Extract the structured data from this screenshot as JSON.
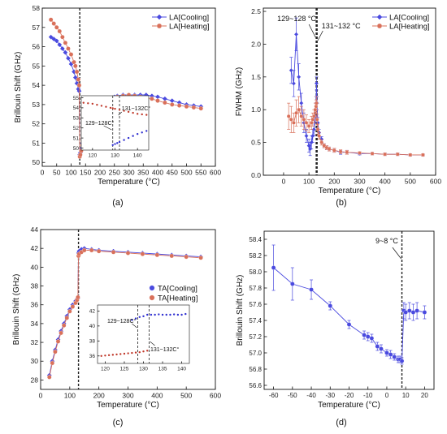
{
  "colors": {
    "cooling": "#4a4adf",
    "heating": "#d9705a",
    "inset_cooling": "#2f2fd0",
    "inset_heating": "#c0392b",
    "axis": "#111111",
    "dashed_line": "#222222"
  },
  "chart_data": [
    {
      "id": "a",
      "type": "line",
      "panel_label": "(a)",
      "xlabel": "Temperature (°C)",
      "ylabel": "Brillouin Shift (GHz)",
      "xlim": [
        0,
        600
      ],
      "ylim": [
        49.8,
        58
      ],
      "xticks": [
        0,
        50,
        100,
        150,
        200,
        250,
        300,
        350,
        400,
        450,
        500,
        550,
        600
      ],
      "yticks": [
        50,
        51,
        52,
        53,
        54,
        55,
        56,
        57,
        58
      ],
      "grid": false,
      "legend": "top-right",
      "vline": 130,
      "series": [
        {
          "name": "LA[Cooling]",
          "color_key": "cooling",
          "x": [
            30,
            40,
            50,
            60,
            70,
            80,
            90,
            100,
            110,
            115,
            120,
            125,
            128,
            130,
            132,
            135,
            140,
            145,
            150,
            160,
            170,
            180,
            190,
            200,
            210,
            220,
            230,
            240,
            250,
            260,
            280,
            300,
            320,
            340,
            360,
            380,
            400,
            425,
            450,
            475,
            500,
            525,
            550
          ],
          "y": [
            56.5,
            56.4,
            56.3,
            56.1,
            55.9,
            55.7,
            55.4,
            55.1,
            54.7,
            54.4,
            54.1,
            53.8,
            53.7,
            50.4,
            50.5,
            50.7,
            51.0,
            51.3,
            51.6,
            52.0,
            52.3,
            52.6,
            52.8,
            53.0,
            53.1,
            53.2,
            53.3,
            53.35,
            53.4,
            53.45,
            53.5,
            53.5,
            53.5,
            53.5,
            53.5,
            53.45,
            53.4,
            53.3,
            53.2,
            53.1,
            53.0,
            52.95,
            52.9
          ]
        },
        {
          "name": "LA[Heating]",
          "color_key": "heating",
          "x": [
            30,
            40,
            50,
            60,
            70,
            80,
            90,
            100,
            110,
            115,
            120,
            125,
            128,
            130,
            132,
            135,
            140,
            145,
            150,
            160,
            170,
            180,
            190,
            200,
            210,
            220,
            230,
            240,
            250,
            260,
            280,
            300,
            320,
            340,
            360,
            380,
            400,
            425,
            450,
            475,
            500,
            525,
            550
          ],
          "y": [
            57.4,
            57.2,
            57.0,
            56.8,
            56.5,
            56.2,
            55.9,
            55.6,
            55.2,
            55.0,
            54.7,
            54.3,
            54.0,
            50.3,
            50.4,
            50.6,
            50.9,
            51.2,
            51.5,
            51.9,
            52.2,
            52.5,
            52.7,
            52.9,
            53.0,
            53.1,
            53.2,
            53.3,
            53.35,
            53.4,
            53.45,
            53.5,
            53.45,
            53.4,
            53.35,
            53.3,
            53.2,
            53.1,
            53.0,
            52.95,
            52.9,
            52.85,
            52.8
          ]
        }
      ],
      "inset": {
        "xlim": [
          115,
          145
        ],
        "ylim": [
          49.8,
          55.2
        ],
        "xticks": [
          120,
          130,
          140
        ],
        "yticks": [
          50,
          51,
          52,
          53,
          54,
          55
        ],
        "vlines": [
          129,
          132
        ],
        "annotations": [
          "129~128C°",
          "131~132C°"
        ],
        "series": [
          {
            "color_key": "inset_heating",
            "x": [
              116,
              118,
              120,
              122,
              124,
              126,
              128,
              129,
              130,
              132,
              134,
              136,
              138,
              140,
              142,
              144
            ],
            "y": [
              54.5,
              54.45,
              54.4,
              54.3,
              54.2,
              54.1,
              54.0,
              53.95,
              53.9,
              53.8,
              53.7,
              53.6,
              53.5,
              53.4,
              53.35,
              53.3
            ]
          },
          {
            "color_key": "inset_cooling",
            "x": [
              129,
              130,
              131,
              132,
              134,
              136,
              138,
              140,
              142,
              144
            ],
            "y": [
              50.3,
              50.4,
              50.5,
              50.6,
              50.8,
              51.0,
              51.2,
              51.4,
              51.55,
              51.7
            ]
          }
        ]
      }
    },
    {
      "id": "b",
      "type": "line",
      "panel_label": "(b)",
      "xlabel": "Temperature (°C)",
      "ylabel": "FWHM (GHz)",
      "xlim": [
        -80,
        600
      ],
      "ylim": [
        0,
        2.55
      ],
      "xticks": [
        0,
        100,
        200,
        300,
        400,
        500,
        600
      ],
      "yticks": [
        0.0,
        0.5,
        1.0,
        1.5,
        2.0,
        2.5
      ],
      "grid": false,
      "legend": "top-right",
      "vlines": [
        129,
        132
      ],
      "annotations": [
        "129~128 °C",
        "131~132 °C"
      ],
      "series": [
        {
          "name": "LA[Cooling]",
          "color_key": "cooling",
          "x": [
            30,
            40,
            50,
            60,
            70,
            80,
            90,
            100,
            105,
            110,
            115,
            120,
            125,
            128,
            130,
            132,
            135,
            140,
            150,
            160,
            170,
            180,
            200,
            225,
            250,
            300,
            350,
            400,
            450,
            500,
            550
          ],
          "y": [
            1.6,
            1.4,
            2.15,
            1.5,
            1.1,
            0.8,
            0.6,
            0.45,
            0.4,
            0.5,
            0.6,
            0.7,
            0.9,
            1.1,
            1.4,
            1.1,
            0.8,
            0.65,
            0.55,
            0.45,
            0.42,
            0.4,
            0.38,
            0.35,
            0.35,
            0.33,
            0.33,
            0.32,
            0.32,
            0.31,
            0.31
          ],
          "err": [
            0.2,
            0.2,
            0.25,
            0.2,
            0.15,
            0.15,
            0.1,
            0.1,
            0.1,
            0.1,
            0.1,
            0.1,
            0.1,
            0.1,
            0.1,
            0.1,
            0.08,
            0.05,
            0.04,
            0.03,
            0.03,
            0.03,
            0.03,
            0.03,
            0.03,
            0.02,
            0.02,
            0.02,
            0.02,
            0.02,
            0.02
          ]
        },
        {
          "name": "LA[Heating]",
          "color_key": "heating",
          "x": [
            20,
            30,
            40,
            50,
            60,
            70,
            80,
            90,
            100,
            110,
            115,
            120,
            125,
            128,
            130,
            132,
            135,
            140,
            150,
            160,
            170,
            180,
            200,
            225,
            250,
            300,
            350,
            400,
            450,
            500,
            550
          ],
          "y": [
            0.9,
            0.85,
            0.8,
            0.95,
            1.0,
            0.9,
            0.85,
            0.8,
            0.75,
            0.8,
            0.85,
            0.9,
            1.0,
            1.05,
            1.1,
            0.85,
            0.7,
            0.6,
            0.5,
            0.45,
            0.42,
            0.4,
            0.38,
            0.36,
            0.35,
            0.34,
            0.33,
            0.32,
            0.32,
            0.31,
            0.31
          ],
          "err": [
            0.2,
            0.2,
            0.15,
            0.2,
            0.2,
            0.15,
            0.15,
            0.12,
            0.1,
            0.1,
            0.1,
            0.1,
            0.1,
            0.1,
            0.1,
            0.08,
            0.08,
            0.05,
            0.04,
            0.03,
            0.03,
            0.03,
            0.03,
            0.03,
            0.03,
            0.02,
            0.02,
            0.02,
            0.02,
            0.02,
            0.02
          ]
        }
      ]
    },
    {
      "id": "c",
      "type": "line",
      "panel_label": "(c)",
      "xlabel": "Temperature (°C)",
      "ylabel": "Brillouin Shift (GHz)",
      "xlim": [
        0,
        600
      ],
      "ylim": [
        27,
        44
      ],
      "xticks": [
        0,
        100,
        200,
        300,
        400,
        500,
        600
      ],
      "yticks": [
        28,
        30,
        32,
        34,
        36,
        38,
        40,
        42,
        44
      ],
      "grid": false,
      "legend": "bottom-right",
      "vline": 130,
      "series": [
        {
          "name": "TA[Cooling]",
          "color_key": "cooling",
          "x": [
            30,
            40,
            50,
            60,
            70,
            80,
            90,
            100,
            110,
            120,
            125,
            128,
            130,
            132,
            140,
            150,
            175,
            200,
            250,
            300,
            350,
            400,
            450,
            500,
            550
          ],
          "y": [
            28.5,
            30.0,
            31.2,
            32.3,
            33.2,
            34.0,
            34.8,
            35.5,
            36.0,
            36.4,
            36.6,
            36.7,
            41.5,
            41.7,
            41.9,
            42.0,
            41.9,
            41.8,
            41.7,
            41.6,
            41.5,
            41.4,
            41.3,
            41.2,
            41.1
          ]
        },
        {
          "name": "TA[Heating]",
          "color_key": "heating",
          "x": [
            30,
            40,
            50,
            60,
            70,
            80,
            90,
            100,
            110,
            120,
            125,
            128,
            130,
            132,
            140,
            150,
            175,
            200,
            250,
            300,
            350,
            400,
            450,
            500,
            550
          ],
          "y": [
            28.3,
            29.8,
            31.0,
            32.1,
            33.0,
            33.8,
            34.6,
            35.3,
            35.8,
            36.2,
            36.5,
            36.8,
            41.2,
            41.4,
            41.6,
            41.8,
            41.8,
            41.7,
            41.6,
            41.5,
            41.4,
            41.3,
            41.2,
            41.1,
            41.0
          ]
        }
      ],
      "inset": {
        "xlim": [
          118,
          142
        ],
        "ylim": [
          35,
          42.8
        ],
        "xticks": [
          120,
          125,
          130,
          135,
          140
        ],
        "yticks": [
          36,
          38,
          40,
          42
        ],
        "vlines": [
          128.5,
          131.5
        ],
        "annotations": [
          "129~128C°",
          "131~132C°"
        ],
        "series": [
          {
            "color_key": "inset_heating",
            "x": [
              119,
              120,
              121,
              122,
              123,
              124,
              125,
              126,
              127,
              128,
              129,
              130,
              131
            ],
            "y": [
              36.0,
              36.05,
              36.1,
              36.15,
              36.2,
              36.25,
              36.3,
              36.35,
              36.4,
              36.45,
              36.5,
              36.6,
              36.7
            ]
          },
          {
            "color_key": "inset_cooling",
            "x": [
              127,
              128,
              129,
              130,
              131,
              132,
              133,
              134,
              135,
              136,
              137,
              138,
              139,
              140,
              141
            ],
            "y": [
              40.8,
              41.0,
              41.2,
              41.3,
              41.5,
              41.5,
              41.5,
              41.55,
              41.5,
              41.5,
              41.5,
              41.55,
              41.5,
              41.5,
              41.6
            ]
          }
        ]
      }
    },
    {
      "id": "d",
      "type": "line",
      "panel_label": "(d)",
      "xlabel": "Temperature (°C)",
      "ylabel": "Brillouin Shift (GHz)",
      "xlim": [
        -65,
        25
      ],
      "ylim": [
        56.55,
        58.5
      ],
      "xticks": [
        -60,
        -50,
        -40,
        -30,
        -20,
        -10,
        0,
        10,
        20
      ],
      "yticks": [
        56.6,
        56.8,
        57.0,
        57.2,
        57.4,
        57.6,
        57.8,
        58.0,
        58.2,
        58.4
      ],
      "grid": false,
      "vline": 8,
      "annotations": [
        "9~8 °C"
      ],
      "series": [
        {
          "color_key": "cooling",
          "x": [
            -60,
            -50,
            -40,
            -30,
            -20,
            -12,
            -10,
            -8,
            -5,
            -3,
            0,
            2,
            4,
            6,
            7,
            8,
            9,
            10,
            12,
            14,
            16,
            20
          ],
          "y": [
            58.05,
            57.85,
            57.78,
            57.58,
            57.35,
            57.22,
            57.2,
            57.18,
            57.08,
            57.05,
            57.0,
            56.98,
            56.95,
            56.92,
            56.92,
            56.9,
            57.52,
            57.5,
            57.52,
            57.5,
            57.52,
            57.5
          ],
          "err": [
            0.28,
            0.2,
            0.12,
            0.05,
            0.05,
            0.05,
            0.05,
            0.05,
            0.05,
            0.05,
            0.04,
            0.05,
            0.04,
            0.04,
            0.04,
            0.04,
            0.1,
            0.1,
            0.1,
            0.1,
            0.1,
            0.08
          ]
        }
      ]
    }
  ]
}
